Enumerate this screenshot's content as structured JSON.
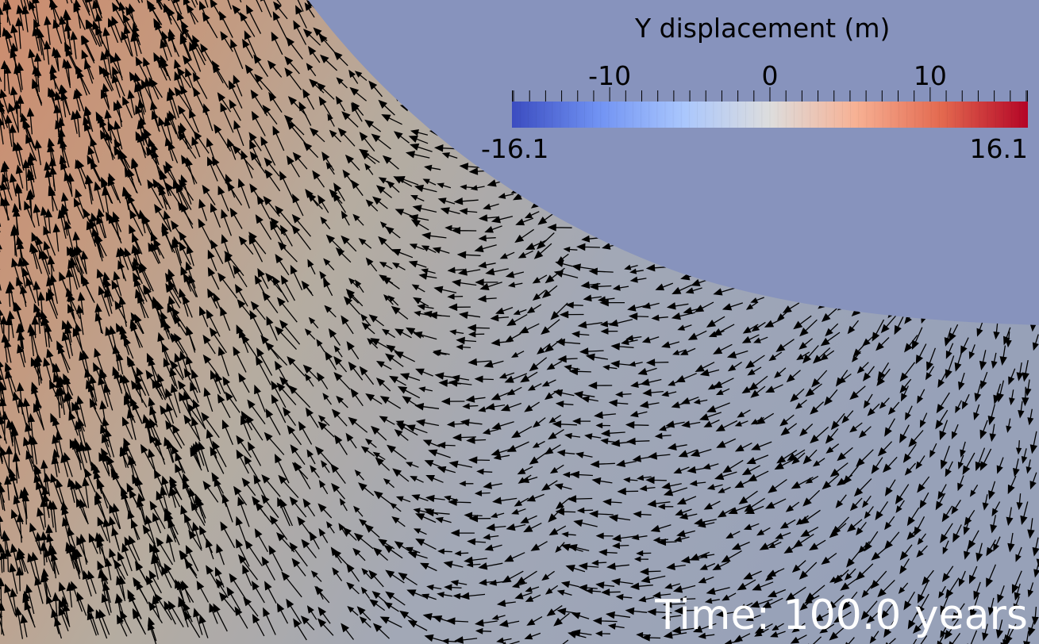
{
  "colorbar": {
    "title": "Y displacement (m)",
    "min_label": "-16.1",
    "max_label": "16.1",
    "range": [
      -16.1,
      16.1
    ],
    "tick_labels": [
      {
        "value": -10,
        "text": "-10"
      },
      {
        "value": 0,
        "text": "0"
      },
      {
        "value": 10,
        "text": "10"
      }
    ],
    "colormap": [
      "#3b4cc0",
      "#7092f3",
      "#aac7fd",
      "#dddddd",
      "#f7b194",
      "#e3694f",
      "#b40426"
    ]
  },
  "time_label": "Time: 100.0 years",
  "colors": {
    "background": "#8793bd",
    "field_high": "#cc8c6e",
    "field_mid": "#b5aca0",
    "field_low": "#97a1b8",
    "arrow": "#000000"
  }
}
